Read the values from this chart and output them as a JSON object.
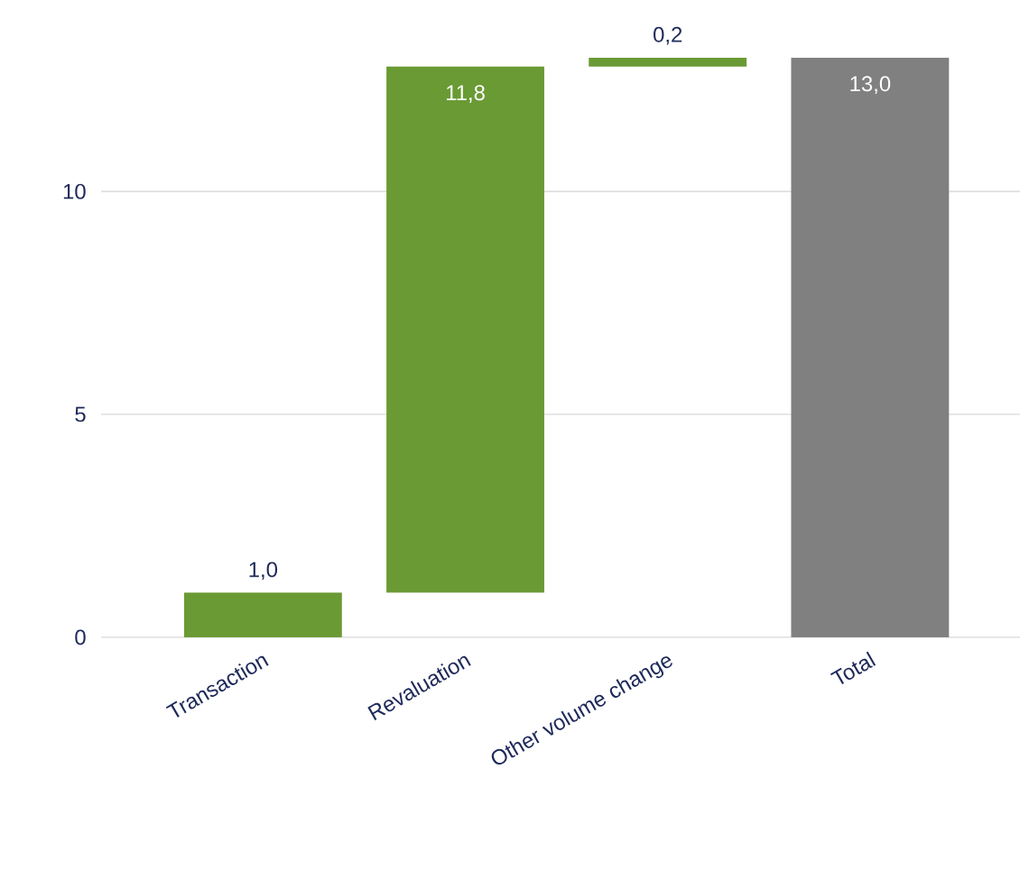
{
  "chart_data": {
    "type": "bar",
    "categories": [
      "Transaction",
      "Revaluation",
      "Other volume change",
      "Total"
    ],
    "values": [
      1.0,
      11.8,
      0.2,
      13.0
    ],
    "base": [
      0,
      1.0,
      12.8,
      0
    ],
    "colors": [
      "#6a9a34",
      "#6a9a34",
      "#6a9a34",
      "#808080"
    ],
    "value_labels": [
      "1,0",
      "11,8",
      "0,2",
      "13,0"
    ],
    "ylim": [
      0,
      13
    ],
    "yticks": [
      0,
      5,
      10
    ],
    "grid": "y"
  }
}
